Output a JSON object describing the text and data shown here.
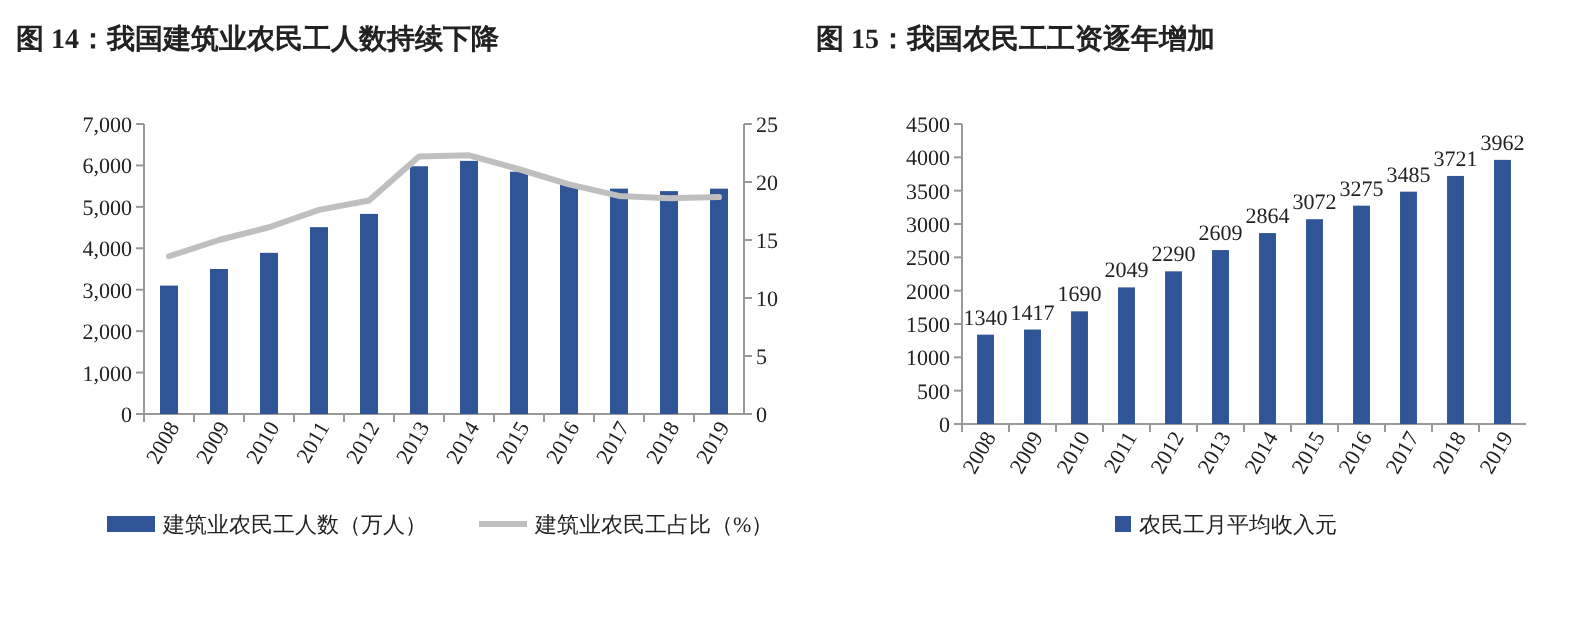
{
  "chart_data": [
    {
      "type": "bar",
      "title": "图 14：我国建筑业农民工人数持续下降",
      "categories": [
        "2008",
        "2009",
        "2010",
        "2011",
        "2012",
        "2013",
        "2014",
        "2015",
        "2016",
        "2017",
        "2018",
        "2019"
      ],
      "series": [
        {
          "name": "建筑业农民工人数（万人）",
          "color": "#2f5597",
          "values": [
            3100,
            3500,
            3890,
            4510,
            4830,
            5980,
            6110,
            5850,
            5540,
            5440,
            5380,
            5440
          ]
        },
        {
          "name": "建筑业农民工占比（%）",
          "type": "line",
          "axis": "y2",
          "color": "#bfbfbf",
          "values": [
            13.6,
            15.0,
            16.1,
            17.6,
            18.4,
            22.2,
            22.3,
            21.1,
            19.8,
            18.8,
            18.6,
            18.7
          ]
        }
      ],
      "ylim": [
        0,
        7000
      ],
      "yticks": [
        0,
        {
          "value": 1000,
          "label": "1,000"
        },
        {
          "value": 2000,
          "label": "2,000"
        },
        {
          "value": 3000,
          "label": "3,000"
        },
        {
          "value": 4000,
          "label": "4,000"
        },
        {
          "value": 5000,
          "label": "5,000"
        },
        {
          "value": 6000,
          "label": "6,000"
        },
        {
          "value": 7000,
          "label": "7,000"
        }
      ],
      "y2lim": [
        0,
        25
      ],
      "y2ticks": [
        0,
        5,
        10,
        15,
        20,
        25
      ],
      "legend": "bottom"
    },
    {
      "type": "bar",
      "title": "图 15：我国农民工工资逐年增加",
      "categories": [
        "2008",
        "2009",
        "2010",
        "2011",
        "2012",
        "2013",
        "2014",
        "2015",
        "2016",
        "2017",
        "2018",
        "2019"
      ],
      "series": [
        {
          "name": "农民工月平均收入元",
          "color": "#2f5597",
          "values": [
            1340,
            1417,
            1690,
            2049,
            2290,
            2609,
            2864,
            3072,
            3275,
            3485,
            3721,
            3962
          ]
        }
      ],
      "ylim": [
        0,
        4500
      ],
      "yticks": [
        0,
        500,
        1000,
        1500,
        2000,
        2500,
        3000,
        3500,
        4000,
        4500
      ],
      "data_labels": true,
      "legend": "bottom"
    }
  ]
}
